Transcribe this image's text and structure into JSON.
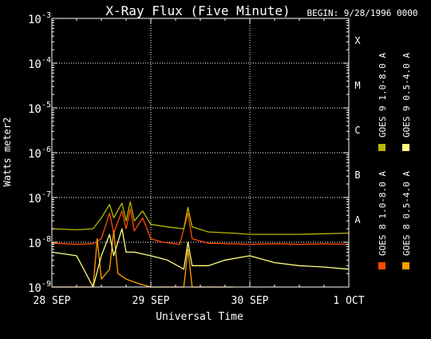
{
  "chart_data": {
    "type": "line",
    "title": "X-Ray Flux (Five Minute)",
    "begin_label": "BEGIN: 9/28/1996 0000",
    "xlabel": "Universal Time",
    "ylabel": "Watts meter2",
    "y_scale": "log",
    "ylim": [
      1e-09,
      0.001
    ],
    "xlim": [
      "1996-09-28T00:00",
      "1996-10-01T00:00"
    ],
    "x_ticks": [
      {
        "at": "1996-09-28T00:00",
        "label": "28 SEP"
      },
      {
        "at": "1996-09-29T00:00",
        "label": "29 SEP"
      },
      {
        "at": "1996-09-30T00:00",
        "label": "30 SEP"
      },
      {
        "at": "1996-10-01T00:00",
        "label": "1 OCT"
      }
    ],
    "y_ticks": [
      {
        "value": 0.001,
        "base": "10",
        "exp": "-3"
      },
      {
        "value": 0.0001,
        "base": "10",
        "exp": "-4"
      },
      {
        "value": 1e-05,
        "base": "10",
        "exp": "-5"
      },
      {
        "value": 1e-06,
        "base": "10",
        "exp": "-6"
      },
      {
        "value": 1e-07,
        "base": "10",
        "exp": "-7"
      },
      {
        "value": 1e-08,
        "base": "10",
        "exp": "-8"
      },
      {
        "value": 1e-09,
        "base": "10",
        "exp": "-9"
      }
    ],
    "flare_classes": [
      {
        "label": "X",
        "value": 0.000316
      },
      {
        "label": "M",
        "value": 3.16e-05
      },
      {
        "label": "C",
        "value": 3.16e-06
      },
      {
        "label": "B",
        "value": 3.16e-07
      },
      {
        "label": "A",
        "value": 3.16e-08
      }
    ],
    "grid": true,
    "legend_position": "right, rotated vertical",
    "series": [
      {
        "name": "GOES 8 1.0-8.0 A",
        "color": "#ff4d00",
        "points": [
          [
            "1996-09-28T00:00",
            9.5e-09
          ],
          [
            "1996-09-28T06:00",
            9e-09
          ],
          [
            "1996-09-28T10:00",
            9.3e-09
          ],
          [
            "1996-09-28T12:00",
            1.2e-08
          ],
          [
            "1996-09-28T14:00",
            4.5e-08
          ],
          [
            "1996-09-28T15:00",
            1.6e-08
          ],
          [
            "1996-09-28T17:00",
            5e-08
          ],
          [
            "1996-09-28T18:00",
            2e-08
          ],
          [
            "1996-09-28T19:00",
            5.5e-08
          ],
          [
            "1996-09-28T20:00",
            1.8e-08
          ],
          [
            "1996-09-28T22:00",
            3.5e-08
          ],
          [
            "1996-09-29T00:00",
            1.2e-08
          ],
          [
            "1996-09-29T03:00",
            1e-08
          ],
          [
            "1996-09-29T07:00",
            9e-09
          ],
          [
            "1996-09-29T09:00",
            4.5e-08
          ],
          [
            "1996-09-29T10:00",
            1.2e-08
          ],
          [
            "1996-09-29T14:00",
            9.5e-09
          ],
          [
            "1996-09-29T20:00",
            9.2e-09
          ],
          [
            "1996-09-30T00:00",
            9e-09
          ],
          [
            "1996-09-30T06:00",
            9.3e-09
          ],
          [
            "1996-09-30T12:00",
            9e-09
          ],
          [
            "1996-09-30T18:00",
            9.2e-09
          ],
          [
            "1996-10-01T00:00",
            9e-09
          ]
        ]
      },
      {
        "name": "GOES 8 0.5-4.0 A",
        "color": "#ffa000",
        "points": [
          [
            "1996-09-28T00:00",
            1e-09
          ],
          [
            "1996-09-28T10:00",
            1e-09
          ],
          [
            "1996-09-28T11:00",
            1.2e-08
          ],
          [
            "1996-09-28T12:00",
            1.5e-09
          ],
          [
            "1996-09-28T14:00",
            2.5e-09
          ],
          [
            "1996-09-28T15:00",
            1.8e-08
          ],
          [
            "1996-09-28T16:00",
            2e-09
          ],
          [
            "1996-09-28T18:00",
            1.5e-09
          ],
          [
            "1996-09-28T21:00",
            1.2e-09
          ],
          [
            "1996-09-29T00:00",
            1e-09
          ],
          [
            "1996-09-29T08:00",
            1e-09
          ],
          [
            "1996-09-29T09:00",
            7e-09
          ],
          [
            "1996-09-29T10:00",
            1e-09
          ],
          [
            "1996-09-29T20:00",
            1e-09
          ]
        ]
      },
      {
        "name": "GOES 9 1.0-8.0 A",
        "color": "#b8b800",
        "points": [
          [
            "1996-09-28T00:00",
            2e-08
          ],
          [
            "1996-09-28T06:00",
            1.9e-08
          ],
          [
            "1996-09-28T10:00",
            2e-08
          ],
          [
            "1996-09-28T12:00",
            3.5e-08
          ],
          [
            "1996-09-28T14:00",
            7e-08
          ],
          [
            "1996-09-28T15:00",
            3.5e-08
          ],
          [
            "1996-09-28T17:00",
            7.5e-08
          ],
          [
            "1996-09-28T18:00",
            3e-08
          ],
          [
            "1996-09-28T19:00",
            8e-08
          ],
          [
            "1996-09-28T20:00",
            3e-08
          ],
          [
            "1996-09-28T22:00",
            5e-08
          ],
          [
            "1996-09-29T00:00",
            2.5e-08
          ],
          [
            "1996-09-29T04:00",
            2.2e-08
          ],
          [
            "1996-09-29T08:00",
            2e-08
          ],
          [
            "1996-09-29T09:00",
            6e-08
          ],
          [
            "1996-09-29T10:00",
            2.2e-08
          ],
          [
            "1996-09-29T14:00",
            1.7e-08
          ],
          [
            "1996-09-29T20:00",
            1.6e-08
          ],
          [
            "1996-09-30T00:00",
            1.5e-08
          ],
          [
            "1996-09-30T12:00",
            1.5e-08
          ],
          [
            "1996-10-01T00:00",
            1.6e-08
          ]
        ]
      },
      {
        "name": "GOES 9 0.5-4.0 A",
        "color": "#ffff80",
        "points": [
          [
            "1996-09-28T00:00",
            6e-09
          ],
          [
            "1996-09-28T06:00",
            5e-09
          ],
          [
            "1996-09-28T10:00",
            1e-09
          ],
          [
            "1996-09-28T12:00",
            5e-09
          ],
          [
            "1996-09-28T14:00",
            1.5e-08
          ],
          [
            "1996-09-28T15:00",
            5e-09
          ],
          [
            "1996-09-28T17:00",
            2e-08
          ],
          [
            "1996-09-28T18:00",
            6e-09
          ],
          [
            "1996-09-28T20:00",
            6e-09
          ],
          [
            "1996-09-29T00:00",
            5e-09
          ],
          [
            "1996-09-29T04:00",
            4e-09
          ],
          [
            "1996-09-29T08:00",
            2.5e-09
          ],
          [
            "1996-09-29T09:00",
            1e-08
          ],
          [
            "1996-09-29T10:00",
            3e-09
          ],
          [
            "1996-09-29T14:00",
            3e-09
          ],
          [
            "1996-09-29T18:00",
            4e-09
          ],
          [
            "1996-09-30T00:00",
            5e-09
          ],
          [
            "1996-09-30T06:00",
            3.5e-09
          ],
          [
            "1996-09-30T12:00",
            3e-09
          ],
          [
            "1996-09-30T18:00",
            2.8e-09
          ],
          [
            "1996-10-01T00:00",
            2.5e-09
          ]
        ]
      }
    ]
  }
}
